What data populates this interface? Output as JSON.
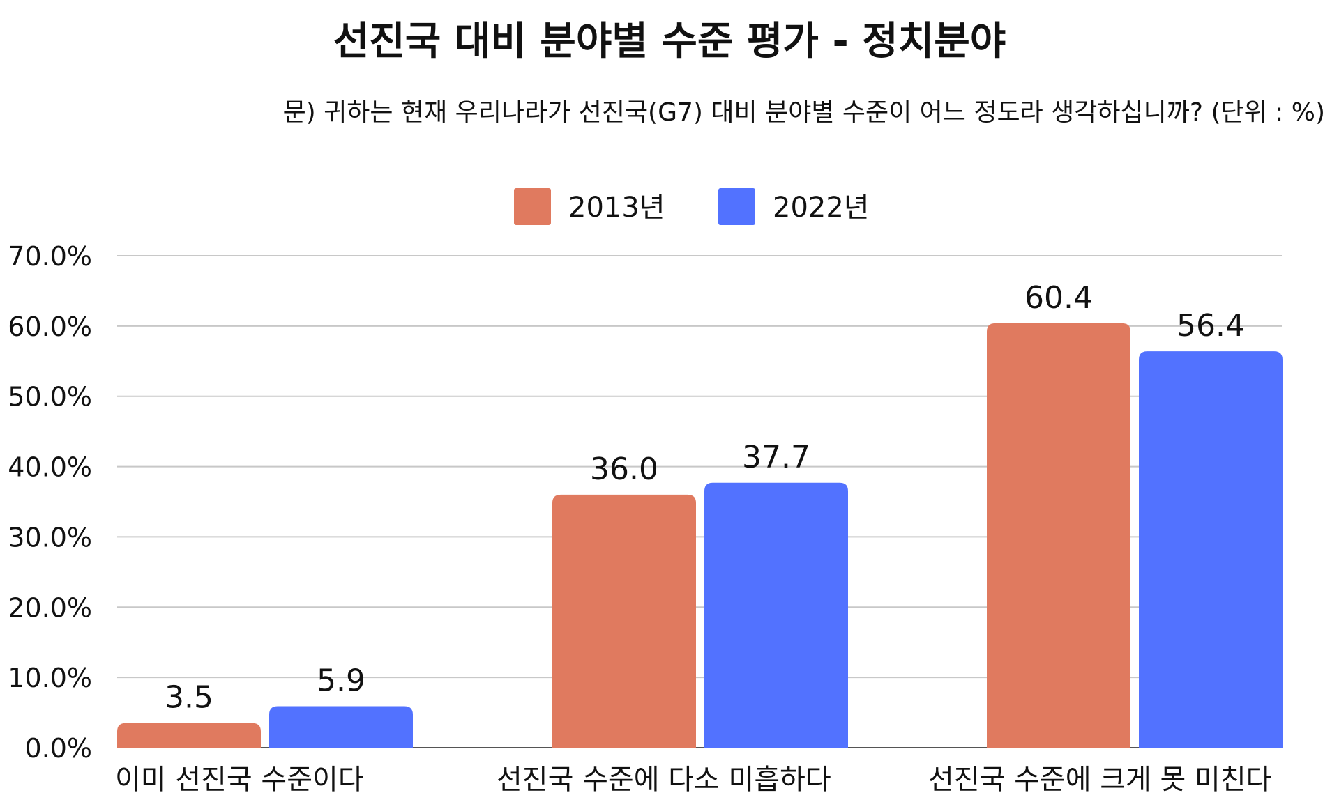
{
  "title": "선진국 대비 분야별 수준 평가 - 정치분야",
  "subtitle": "문) 귀하는 현재 우리나라가 선진국(G7) 대비 분야별 수준이 어느 정도라 생각하십니까? (단위 : %)",
  "colors": {
    "series_2013": "#e07a5f",
    "series_2022": "#5272ff",
    "grid": "#c8c8c8",
    "text": "#111111"
  },
  "chart_data": {
    "type": "bar",
    "title": "선진국 대비 분야별 수준 평가 - 정치분야",
    "subtitle": "문) 귀하는 현재 우리나라가 선진국(G7) 대비 분야별 수준이 어느 정도라 생각하십니까? (단위 : %)",
    "categories": [
      "이미 선진국 수준이다",
      "선진국 수준에 다소 미흡하다",
      "선진국 수준에 크게 못 미친다"
    ],
    "series": [
      {
        "name": "2013년",
        "values": [
          3.5,
          36.0,
          60.4
        ],
        "labels": [
          "3.5",
          "36.0",
          "60.4"
        ],
        "color": "#e07a5f"
      },
      {
        "name": "2022년",
        "values": [
          5.9,
          37.7,
          56.4
        ],
        "labels": [
          "5.9",
          "37.7",
          "56.4"
        ],
        "color": "#5272ff"
      }
    ],
    "xlabel": "",
    "ylabel": "",
    "ylim": [
      0,
      70
    ],
    "yticks": [
      0,
      10,
      20,
      30,
      40,
      50,
      60,
      70
    ],
    "ytick_labels": [
      "0.0%",
      "10.0%",
      "20.0%",
      "30.0%",
      "40.0%",
      "50.0%",
      "60.0%",
      "70.0%"
    ],
    "grid": true,
    "legend_position": "top-center"
  }
}
